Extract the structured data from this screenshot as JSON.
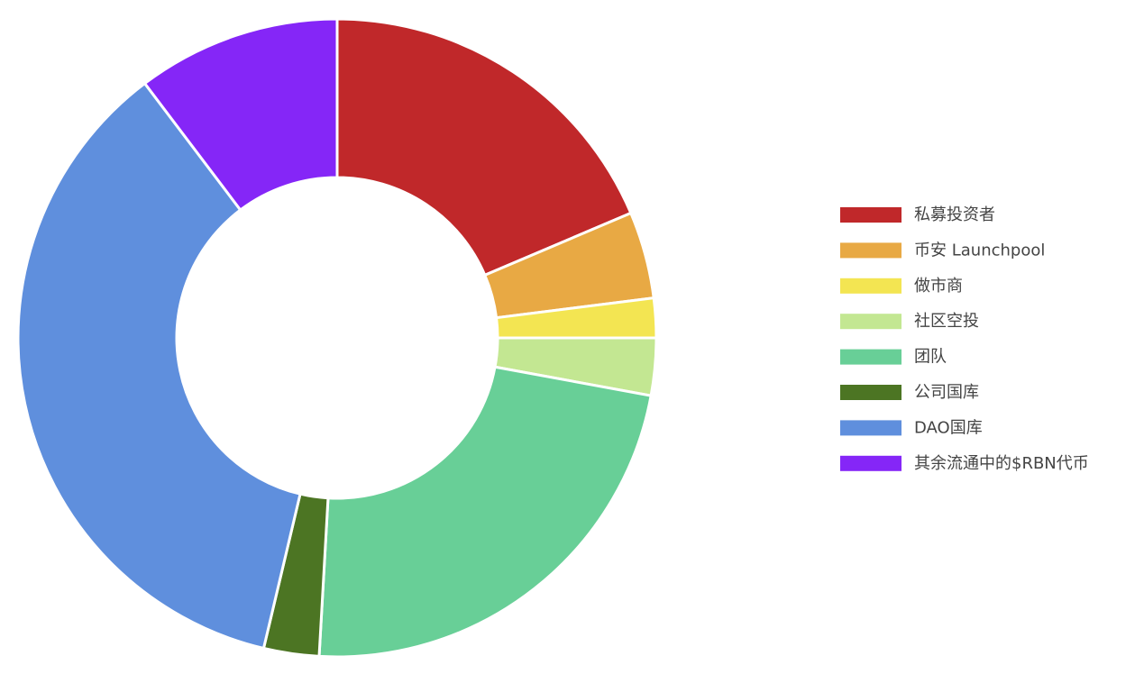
{
  "chart_data": {
    "type": "pie",
    "series": [
      {
        "name": "私募投资者",
        "color": "#c0282a",
        "value": 18.6
      },
      {
        "name": "币安 Launchpool",
        "color": "#e8a944",
        "value": 4.4
      },
      {
        "name": "做市商",
        "color": "#f3e552",
        "value": 2
      },
      {
        "name": "社区空投",
        "color": "#c3e792",
        "value": 2.9
      },
      {
        "name": "团队",
        "color": "#68cf97",
        "value": 23
      },
      {
        "name": "公司国库",
        "color": "#4c7523",
        "value": 2.8
      },
      {
        "name": "DAO国库",
        "color": "#5f8fdd",
        "value": 36
      },
      {
        "name": "其余流通中的$RBN代币",
        "color": "#8526f7",
        "value": 10.3
      }
    ],
    "legend": "right"
  }
}
